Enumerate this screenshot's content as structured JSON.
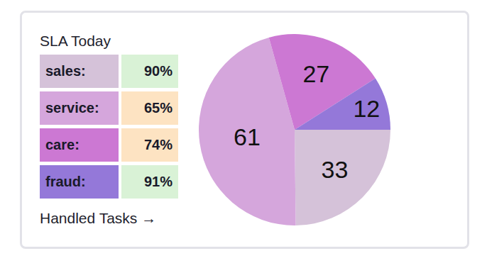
{
  "card": {
    "title": "SLA Today",
    "table": {
      "rows": [
        {
          "label": "sales:",
          "sla": "90%",
          "color": "#d5c2d9",
          "sla_color": "#d9f2d6"
        },
        {
          "label": "service:",
          "sla": "65%",
          "color": "#d5a6dc",
          "sla_color": "#fde3c2"
        },
        {
          "label": "care:",
          "sla": "74%",
          "color": "#cc78d3",
          "sla_color": "#fde3c2"
        },
        {
          "label": "fraud:",
          "sla": "91%",
          "color": "#9478d9",
          "sla_color": "#d9f2d6"
        }
      ]
    },
    "link": "Handled Tasks →"
  },
  "chart_data": {
    "type": "pie",
    "values": [
      33,
      61,
      27,
      12
    ],
    "colors": [
      "#d5c2d9",
      "#d5a6dc",
      "#cc78d3",
      "#9478d9"
    ],
    "data_labels": true
  }
}
